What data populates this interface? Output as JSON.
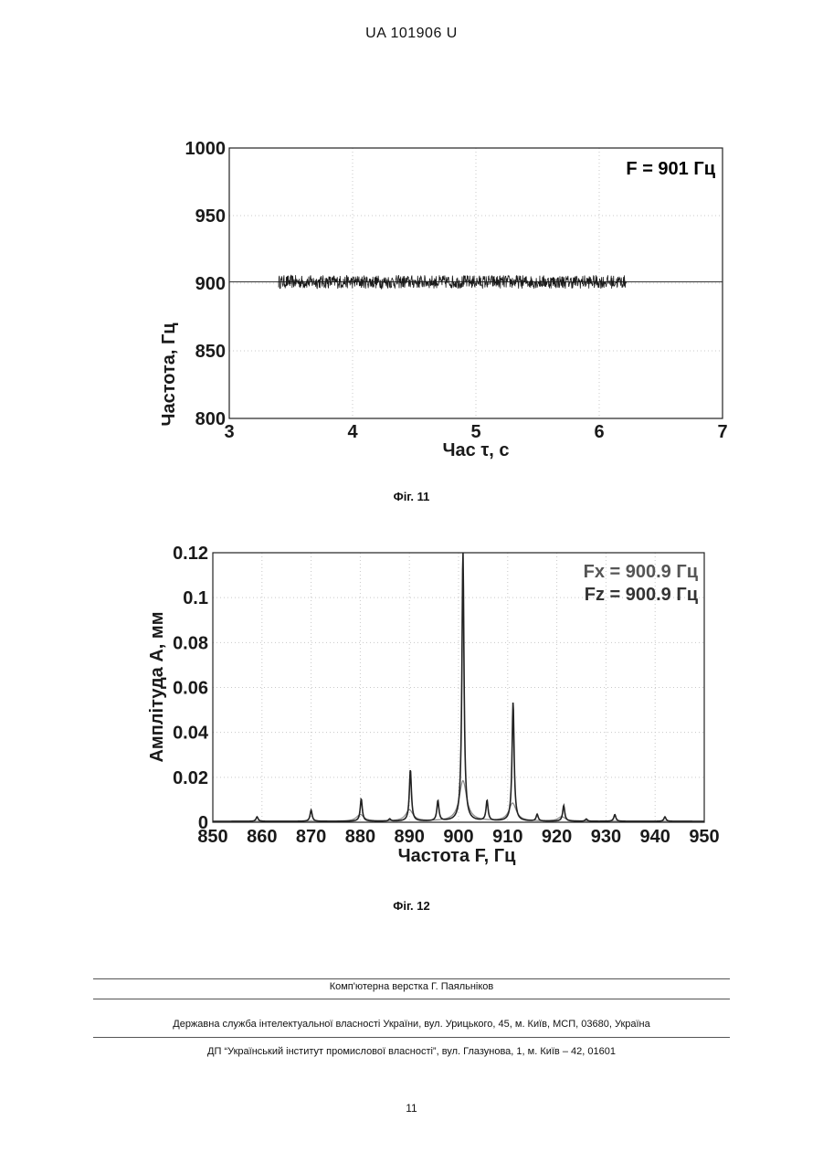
{
  "header": {
    "doc_id": "UA   101906   U"
  },
  "figure11": {
    "caption": "Фіг. 11",
    "annotation": "F = 901 Гц",
    "chart_data": {
      "type": "line",
      "xlabel": "Час τ, с",
      "ylabel": "Частота, Гц",
      "xlim": [
        3,
        7
      ],
      "ylim": [
        800,
        1000
      ],
      "x_ticks": [
        "3",
        "4",
        "5",
        "6",
        "7"
      ],
      "y_ticks": [
        "800",
        "850",
        "900",
        "950",
        "1000"
      ],
      "grid": true,
      "series": [
        {
          "x_start": 3.4,
          "x_end": 6.22,
          "mean": 901,
          "spread": 5
        }
      ],
      "reference_line": 901
    }
  },
  "figure12": {
    "caption": "Фіг. 12",
    "annotations": [
      "Fx = 900.9 Гц",
      "Fz = 900.9 Гц"
    ],
    "chart_data": {
      "type": "line",
      "xlabel": "Частота F, Гц",
      "ylabel": "Амплітуда A, мм",
      "xlim": [
        850,
        950
      ],
      "ylim": [
        0,
        0.12
      ],
      "x_ticks": [
        "850",
        "860",
        "870",
        "880",
        "890",
        "900",
        "910",
        "920",
        "930",
        "940",
        "950"
      ],
      "y_ticks": [
        "0",
        "0.02",
        "0.04",
        "0.06",
        "0.08",
        "0.1",
        "0.12"
      ],
      "grid": true,
      "series": [
        {
          "peaks": [
            [
              859,
              0.002
            ],
            [
              870,
              0.005
            ],
            [
              880.2,
              0.01
            ],
            [
              886,
              0.001
            ],
            [
              890.2,
              0.023
            ],
            [
              895.8,
              0.009
            ],
            [
              900.9,
              0.12
            ],
            [
              905.8,
              0.009
            ],
            [
              911.1,
              0.053
            ],
            [
              916,
              0.003
            ],
            [
              921.4,
              0.007
            ],
            [
              926,
              0.001
            ],
            [
              931.8,
              0.003
            ],
            [
              942,
              0.002
            ]
          ]
        },
        {
          "peaks": [
            [
              880,
              0.003
            ],
            [
              890,
              0.005
            ],
            [
              900.9,
              0.018
            ],
            [
              911,
              0.008
            ],
            [
              921,
              0.002
            ]
          ]
        }
      ]
    }
  },
  "footer": {
    "layout_credit": "Комп'ютерна верстка Г. Паяльніков",
    "agency": "Державна служба інтелектуальної власності України, вул. Урицького, 45, м. Київ, МСП, 03680, Україна",
    "institute": "ДП “Український інститут промислової власності”, вул. Глазунова, 1, м. Київ – 42, 01601",
    "page_number": "11"
  }
}
